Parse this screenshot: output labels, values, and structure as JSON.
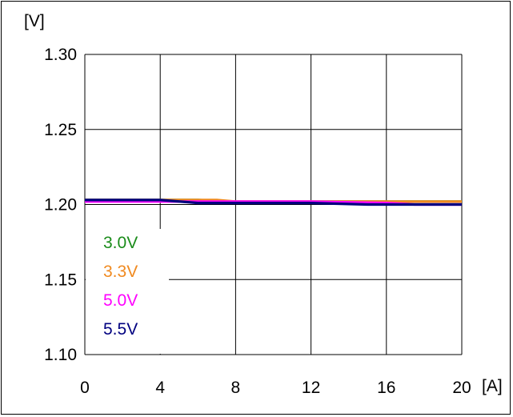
{
  "chart_data": {
    "type": "line",
    "ylabel": "[V]",
    "xlabel": "[A]",
    "xlim": [
      0,
      20
    ],
    "ylim": [
      1.1,
      1.3
    ],
    "x_ticks": [
      0,
      4,
      8,
      12,
      16,
      20
    ],
    "y_ticks": [
      "1.30",
      "1.25",
      "1.20",
      "1.15",
      "1.10"
    ],
    "grid": true,
    "legend_position": "bottom-left",
    "series": [
      {
        "name": "3.0V",
        "color": "#1a8c1a",
        "x": [
          0,
          4,
          6,
          8,
          12,
          16,
          20
        ],
        "y": [
          1.203,
          1.203,
          1.203,
          1.202,
          1.202,
          1.202,
          1.202
        ]
      },
      {
        "name": "3.3V",
        "color": "#f08a20",
        "x": [
          0,
          4,
          6,
          7,
          8,
          12,
          16,
          20
        ],
        "y": [
          1.203,
          1.203,
          1.203,
          1.203,
          1.202,
          1.202,
          1.202,
          1.202
        ]
      },
      {
        "name": "5.0V",
        "color": "#ff00ff",
        "x": [
          0,
          4,
          8,
          12,
          16,
          17.5,
          20
        ],
        "y": [
          1.202,
          1.202,
          1.202,
          1.202,
          1.201,
          1.2,
          1.2
        ]
      },
      {
        "name": "5.5V",
        "color": "#000080",
        "x": [
          0,
          4,
          6,
          8,
          12,
          15,
          17,
          20
        ],
        "y": [
          1.203,
          1.203,
          1.201,
          1.201,
          1.201,
          1.2,
          1.2,
          1.2
        ]
      }
    ]
  }
}
